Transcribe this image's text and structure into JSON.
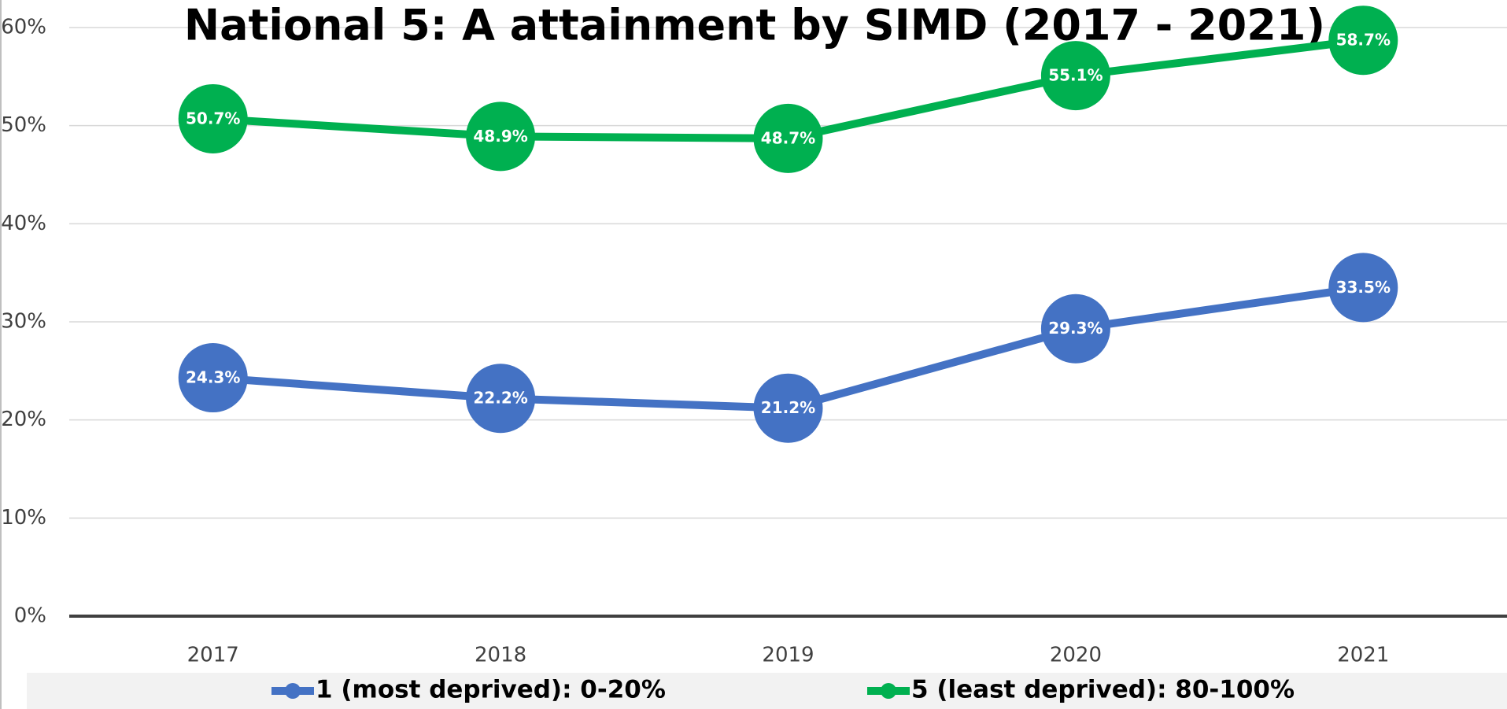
{
  "chart_data": {
    "type": "line",
    "title": "National 5: A attainment by SIMD (2017 - 2021)",
    "categories": [
      "2017",
      "2018",
      "2019",
      "2020",
      "2021"
    ],
    "series": [
      {
        "name": "1 (most deprived): 0-20%",
        "color": "#4472c4",
        "values": [
          24.3,
          22.2,
          21.2,
          29.3,
          33.5
        ],
        "value_labels": [
          "24.3%",
          "22.2%",
          "21.2%",
          "29.3%",
          "33.5%"
        ]
      },
      {
        "name": "5 (least deprived): 80-100%",
        "color": "#00b050",
        "values": [
          50.7,
          48.9,
          48.7,
          55.1,
          58.7
        ],
        "value_labels": [
          "50.7%",
          "48.9%",
          "48.7%",
          "55.1%",
          "58.7%"
        ]
      }
    ],
    "ylim": [
      0,
      60
    ],
    "yticks": [
      {
        "value": 0,
        "label": "0%"
      },
      {
        "value": 10,
        "label": "10%"
      },
      {
        "value": 20,
        "label": "20%"
      },
      {
        "value": 30,
        "label": "30%"
      },
      {
        "value": 40,
        "label": "40%"
      },
      {
        "value": 50,
        "label": "50%"
      },
      {
        "value": 60,
        "label": "60%"
      }
    ],
    "grid": true,
    "legend": "bottom"
  }
}
